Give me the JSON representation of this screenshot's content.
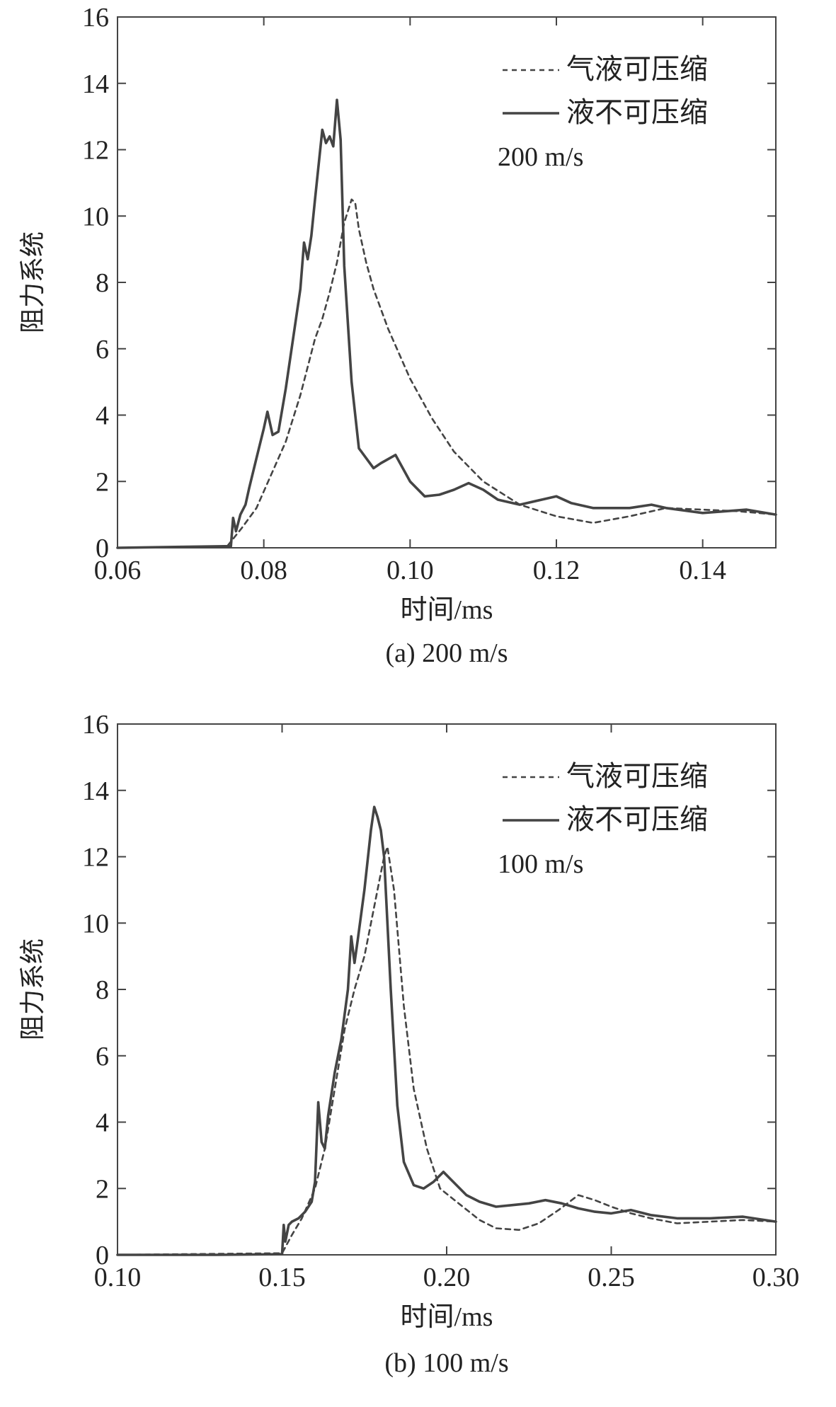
{
  "colors": {
    "axis": "#444444",
    "series": "#444444",
    "background": "#ffffff"
  },
  "chart_data": [
    {
      "type": "line",
      "panel_caption": "(a) 200 m/s",
      "title": "",
      "xlabel": "时间/ms",
      "ylabel": "阻力系统",
      "xlim": [
        0.06,
        0.15
      ],
      "ylim": [
        0,
        16
      ],
      "xticks": [
        0.06,
        0.08,
        0.1,
        0.12,
        0.14
      ],
      "xtick_labels": [
        "0.06",
        "0.08",
        "0.10",
        "0.12",
        "0.14"
      ],
      "yticks": [
        0,
        2,
        4,
        6,
        8,
        10,
        12,
        14,
        16
      ],
      "ytick_labels": [
        "0",
        "2",
        "4",
        "6",
        "8",
        "10",
        "12",
        "14",
        "16"
      ],
      "legend": {
        "position": "top-right",
        "entries": [
          "气液可压缩",
          "液不可压缩"
        ]
      },
      "annotation": "200 m/s",
      "series": [
        {
          "name": "气液可压缩",
          "style": "dashed",
          "x": [
            0.06,
            0.075,
            0.077,
            0.079,
            0.081,
            0.083,
            0.085,
            0.087,
            0.088,
            0.089,
            0.09,
            0.091,
            0.092,
            0.0925,
            0.093,
            0.094,
            0.095,
            0.097,
            0.1,
            0.103,
            0.106,
            0.11,
            0.115,
            0.12,
            0.125,
            0.13,
            0.135,
            0.14,
            0.145,
            0.15
          ],
          "y": [
            0,
            0.05,
            0.6,
            1.2,
            2.2,
            3.2,
            4.6,
            6.3,
            6.9,
            7.7,
            8.6,
            9.8,
            10.5,
            10.4,
            9.6,
            8.6,
            7.8,
            6.6,
            5.1,
            3.9,
            2.9,
            2.0,
            1.3,
            0.95,
            0.75,
            0.95,
            1.2,
            1.15,
            1.1,
            1.0
          ]
        },
        {
          "name": "液不可压缩",
          "style": "solid",
          "x": [
            0.06,
            0.0755,
            0.0758,
            0.0762,
            0.0768,
            0.0775,
            0.078,
            0.079,
            0.08,
            0.0805,
            0.0812,
            0.082,
            0.083,
            0.084,
            0.085,
            0.0855,
            0.086,
            0.0865,
            0.087,
            0.088,
            0.0885,
            0.089,
            0.0895,
            0.09,
            0.0905,
            0.091,
            0.092,
            0.093,
            0.095,
            0.096,
            0.098,
            0.1,
            0.102,
            0.104,
            0.106,
            0.108,
            0.11,
            0.112,
            0.115,
            0.118,
            0.12,
            0.122,
            0.125,
            0.13,
            0.133,
            0.135,
            0.14,
            0.146,
            0.15
          ],
          "y": [
            0,
            0.05,
            0.9,
            0.5,
            1.0,
            1.3,
            1.8,
            2.7,
            3.6,
            4.1,
            3.4,
            3.5,
            4.8,
            6.3,
            7.8,
            9.2,
            8.7,
            9.4,
            10.5,
            12.6,
            12.2,
            12.4,
            12.1,
            13.5,
            12.3,
            8.5,
            5.0,
            3.0,
            2.4,
            2.55,
            2.8,
            2.0,
            1.55,
            1.6,
            1.75,
            1.95,
            1.75,
            1.45,
            1.3,
            1.45,
            1.55,
            1.35,
            1.2,
            1.2,
            1.3,
            1.2,
            1.05,
            1.15,
            1.0
          ]
        }
      ]
    },
    {
      "type": "line",
      "panel_caption": "(b) 100 m/s",
      "title": "",
      "xlabel": "时间/ms",
      "ylabel": "阻力系统",
      "xlim": [
        0.1,
        0.3
      ],
      "ylim": [
        0,
        16
      ],
      "xticks": [
        0.1,
        0.15,
        0.2,
        0.25,
        0.3
      ],
      "xtick_labels": [
        "0.10",
        "0.15",
        "0.20",
        "0.25",
        "0.30"
      ],
      "yticks": [
        0,
        2,
        4,
        6,
        8,
        10,
        12,
        14,
        16
      ],
      "ytick_labels": [
        "0",
        "2",
        "4",
        "6",
        "8",
        "10",
        "12",
        "14",
        "16"
      ],
      "legend": {
        "position": "top-right",
        "entries": [
          "气液可压缩",
          "液不可压缩"
        ]
      },
      "annotation": "100 m/s",
      "series": [
        {
          "name": "气液可压缩",
          "style": "dashed",
          "x": [
            0.1,
            0.15,
            0.153,
            0.156,
            0.16,
            0.163,
            0.166,
            0.169,
            0.172,
            0.175,
            0.178,
            0.181,
            0.182,
            0.184,
            0.187,
            0.19,
            0.194,
            0.198,
            0.203,
            0.21,
            0.215,
            0.222,
            0.228,
            0.234,
            0.24,
            0.245,
            0.25,
            0.256,
            0.262,
            0.27,
            0.28,
            0.29,
            0.3
          ],
          "y": [
            0,
            0.05,
            0.6,
            1.1,
            2.0,
            3.2,
            5.0,
            6.8,
            8.0,
            9.0,
            10.5,
            12.0,
            12.3,
            11.0,
            7.5,
            5.0,
            3.2,
            2.0,
            1.6,
            1.05,
            0.8,
            0.75,
            0.95,
            1.35,
            1.8,
            1.65,
            1.45,
            1.25,
            1.1,
            0.95,
            1.0,
            1.05,
            1.0
          ]
        },
        {
          "name": "液不可压缩",
          "style": "solid",
          "x": [
            0.1,
            0.13,
            0.15,
            0.1505,
            0.151,
            0.152,
            0.153,
            0.155,
            0.157,
            0.159,
            0.16,
            0.161,
            0.162,
            0.163,
            0.164,
            0.166,
            0.168,
            0.17,
            0.171,
            0.172,
            0.173,
            0.175,
            0.177,
            0.178,
            0.179,
            0.18,
            0.181,
            0.183,
            0.185,
            0.187,
            0.19,
            0.193,
            0.196,
            0.199,
            0.202,
            0.206,
            0.21,
            0.215,
            0.22,
            0.225,
            0.23,
            0.235,
            0.24,
            0.245,
            0.25,
            0.256,
            0.262,
            0.27,
            0.28,
            0.29,
            0.3
          ],
          "y": [
            0,
            0,
            0.02,
            0.9,
            0.4,
            0.9,
            1.0,
            1.1,
            1.3,
            1.6,
            2.2,
            4.6,
            3.4,
            3.2,
            4.2,
            5.5,
            6.5,
            8.0,
            9.6,
            8.8,
            9.5,
            11.0,
            12.8,
            13.5,
            13.2,
            12.8,
            12.0,
            8.0,
            4.5,
            2.8,
            2.1,
            2.0,
            2.2,
            2.5,
            2.2,
            1.8,
            1.6,
            1.45,
            1.5,
            1.55,
            1.65,
            1.55,
            1.4,
            1.3,
            1.25,
            1.35,
            1.2,
            1.1,
            1.1,
            1.15,
            1.0
          ]
        }
      ]
    }
  ]
}
